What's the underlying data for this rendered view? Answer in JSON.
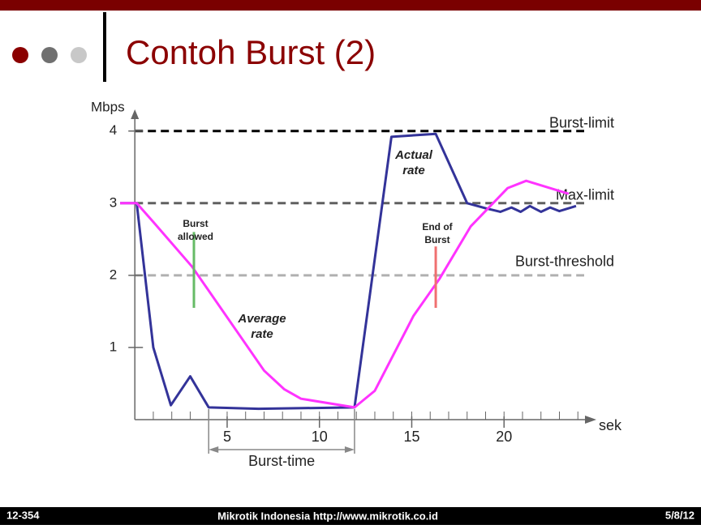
{
  "slide": {
    "title": "Contoh Burst (2)",
    "footer_left": "12-354",
    "footer_center": "Mikrotik Indonesia http://www.mikrotik.co.id",
    "footer_right": "5/8/12"
  },
  "chart_data": {
    "type": "line",
    "y_label": "Mbps",
    "x_label": "sek",
    "xlim": [
      -0.8,
      25
    ],
    "ylim": [
      0,
      4.3
    ],
    "xticks": [
      5,
      10,
      15,
      20
    ],
    "xminorticks": [
      1,
      2,
      3,
      4,
      5,
      6,
      7,
      8,
      9,
      10,
      11,
      12,
      13,
      14,
      15,
      16,
      17,
      18,
      19,
      20,
      21,
      22,
      23,
      24
    ],
    "yticks": [
      1,
      2,
      3,
      4
    ],
    "series": [
      {
        "name": "Actual rate",
        "color": "#333399",
        "x": [
          -0.8,
          0.1,
          1,
          1.95,
          3,
          4,
          6.7,
          11.9,
          13.9,
          16.3,
          18,
          19,
          19.8,
          20.4,
          20.9,
          21.4,
          22,
          22.5,
          23,
          23.9
        ],
        "values": [
          3,
          3,
          1,
          0.2,
          0.6,
          0.17,
          0.15,
          0.17,
          3.92,
          3.96,
          3,
          2.93,
          2.88,
          2.94,
          2.88,
          2.96,
          2.88,
          2.94,
          2.89,
          2.96
        ]
      },
      {
        "name": "Average rate",
        "color": "#ff33ff",
        "x": [
          -0.8,
          0.1,
          1,
          3.1,
          7,
          8.1,
          9,
          11.9,
          13,
          15.1,
          16.5,
          18.2,
          20.2,
          21.2,
          23.5
        ],
        "values": [
          3,
          3,
          2.74,
          2.12,
          0.68,
          0.42,
          0.29,
          0.17,
          0.4,
          1.44,
          1.95,
          2.68,
          3.21,
          3.31,
          3.13
        ]
      }
    ],
    "reference_lines": [
      {
        "label": "Burst-limit",
        "value": 4,
        "color": "#000000"
      },
      {
        "label": "Max-limit",
        "value": 3,
        "color": "#606060"
      },
      {
        "label": "Burst-threshold",
        "value": 2,
        "color": "#b0b0b0"
      }
    ],
    "markers": [
      {
        "lines": [
          "Burst",
          "allowed"
        ],
        "x": 3.2,
        "y_range": [
          1.55,
          2.6
        ],
        "color": "#66bb66"
      },
      {
        "lines": [
          "End of",
          "Burst"
        ],
        "x": 16.3,
        "y_range": [
          1.55,
          2.4
        ],
        "color": "#f07070"
      }
    ],
    "series_labels": [
      {
        "lines": [
          "Actual",
          "rate"
        ]
      },
      {
        "lines": [
          "Average",
          "rate"
        ]
      }
    ],
    "burst_time": {
      "label": "Burst-time",
      "start": 4,
      "end": 11.9
    }
  }
}
